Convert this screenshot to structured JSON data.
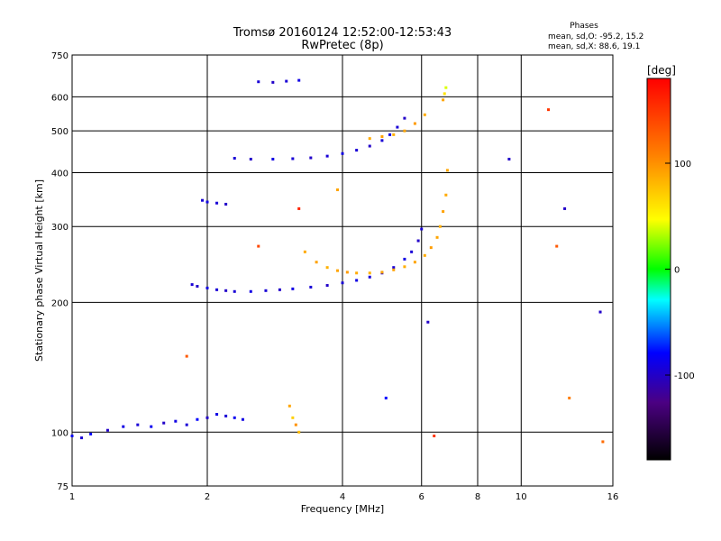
{
  "chart_data": {
    "type": "scatter",
    "title": "Tromsø 20160124 12:52:00-12:53:43",
    "subtitle": "RwPretec (8p)",
    "xlabel": "Frequency [MHz]",
    "ylabel": "Stationary phase Virtual Height [km]",
    "x_scale": "log",
    "y_scale": "log",
    "xlim": [
      1,
      16
    ],
    "ylim": [
      75,
      750
    ],
    "x_ticks": [
      1,
      2,
      4,
      6,
      8,
      10,
      16
    ],
    "y_ticks": [
      75,
      100,
      200,
      300,
      400,
      500,
      600,
      750
    ],
    "x_grid": [
      2,
      4,
      6,
      8,
      10,
      16
    ],
    "y_grid": [
      100,
      200,
      300,
      400,
      500,
      600
    ],
    "grid": true,
    "phase_info": {
      "title": "Phases",
      "line_o": "mean, sd,O:  -95.2, 15.2",
      "line_x": "mean, sd,X:   88.6, 19.1"
    },
    "colorbar": {
      "label": "[deg]",
      "ticks": [
        100,
        0,
        -100
      ],
      "range": [
        -180,
        180
      ]
    },
    "series": [
      {
        "segments": [
          {
            "x": [
              1.0,
              1.05,
              1.1,
              1.2,
              1.3,
              1.4,
              1.5,
              1.6,
              1.7,
              1.8,
              1.9,
              2.0,
              2.1,
              2.2,
              2.3,
              2.4
            ],
            "y": [
              98,
              97,
              99,
              101,
              103,
              104,
              103,
              105,
              106,
              104,
              107,
              108,
              110,
              109,
              108,
              107
            ],
            "phase": [
              -85,
              -95,
              -80,
              -100,
              -90,
              -95,
              -85,
              -100,
              -90,
              -95,
              -80,
              -100,
              -90,
              -95,
              -85,
              -90
            ]
          },
          {
            "x": [
              1.85,
              1.9,
              2.0,
              2.1,
              2.2,
              2.3,
              2.5,
              2.7,
              2.9,
              3.1,
              3.4,
              3.7,
              4.0,
              4.3,
              4.6,
              4.9,
              5.2,
              5.5,
              5.7,
              5.9,
              6.0
            ],
            "y": [
              220,
              218,
              216,
              214,
              213,
              212,
              212,
              213,
              214,
              215,
              217,
              219,
              222,
              225,
              229,
              234,
              241,
              252,
              262,
              278,
              296
            ],
            "phase": [
              -95,
              -100,
              -90,
              -95,
              -100,
              -95,
              -90,
              -95,
              -100,
              -90,
              -95,
              -100,
              -95,
              -90,
              -95,
              -100,
              -95,
              -90,
              -95,
              -100,
              -95
            ]
          },
          {
            "x": [
              2.3,
              2.5,
              2.8,
              3.1,
              3.4,
              3.7,
              4.0,
              4.3,
              4.6,
              4.9,
              5.1,
              5.3,
              5.5
            ],
            "y": [
              432,
              430,
              430,
              431,
              433,
              437,
              443,
              451,
              461,
              475,
              490,
              510,
              535
            ],
            "phase": [
              -95,
              -100,
              -90,
              -95,
              -100,
              -95,
              -90,
              -95,
              -100,
              -95,
              -90,
              -95,
              -100
            ]
          },
          {
            "x": [
              1.95,
              2.0,
              2.1,
              2.2
            ],
            "y": [
              345,
              342,
              340,
              338
            ],
            "phase": [
              -95,
              -90,
              -95,
              -100
            ]
          },
          {
            "x": [
              2.6,
              2.8,
              3.0,
              3.2
            ],
            "y": [
              650,
              648,
              652,
              655
            ],
            "phase": [
              -95,
              -100,
              -95,
              -90
            ]
          }
        ]
      },
      {
        "segments": [
          {
            "x": [
              3.3,
              3.5,
              3.7,
              3.9,
              4.1,
              4.3,
              4.6,
              4.9,
              5.2,
              5.5,
              5.8,
              6.1,
              6.3,
              6.5,
              6.6,
              6.7,
              6.8,
              6.85
            ],
            "y": [
              262,
              248,
              241,
              237,
              235,
              234,
              234,
              235,
              238,
              242,
              248,
              257,
              268,
              283,
              300,
              325,
              355,
              405
            ],
            "phase": [
              88,
              92,
              85,
              90,
              95,
              88,
              84,
              90,
              92,
              86,
              90,
              88,
              94,
              90,
              86,
              92,
              88,
              90
            ]
          },
          {
            "x": [
              4.6,
              4.9,
              5.2,
              5.5,
              5.8,
              6.1
            ],
            "y": [
              480,
              485,
              490,
              500,
              520,
              545
            ],
            "phase": [
              88,
              92,
              85,
              90,
              95,
              88
            ]
          },
          {
            "x": [
              6.7,
              6.75,
              6.8
            ],
            "y": [
              590,
              610,
              630
            ],
            "phase": [
              90,
              60,
              40
            ]
          },
          {
            "x": [
              3.05,
              3.1,
              3.15,
              3.2
            ],
            "y": [
              115,
              108,
              104,
              100
            ],
            "phase": [
              90,
              70,
              100,
              80
            ]
          }
        ]
      },
      {
        "segments": [
          {
            "x": [
              1.8,
              2.6,
              3.2,
              3.9,
              5.0,
              6.2,
              6.4,
              9.4,
              11.5,
              12.0,
              12.5,
              12.8,
              15.0,
              15.2
            ],
            "y": [
              150,
              270,
              330,
              365,
              120,
              180,
              98,
              430,
              560,
              270,
              330,
              120,
              190,
              95
            ],
            "phase": [
              130,
              140,
              160,
              90,
              -80,
              -100,
              150,
              -100,
              150,
              130,
              -100,
              110,
              -100,
              120
            ]
          }
        ]
      }
    ]
  }
}
